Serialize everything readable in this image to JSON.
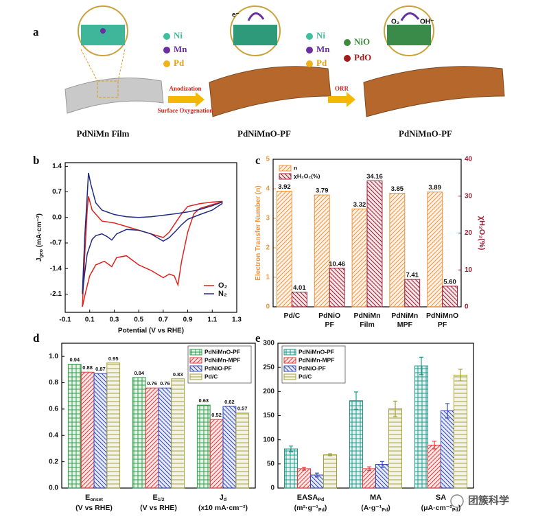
{
  "panel_labels": [
    "a",
    "b",
    "c",
    "d",
    "e"
  ],
  "schematic": {
    "legend1": [
      "Ni",
      "Mn",
      "Pd"
    ],
    "legend2": [
      "Ni",
      "Mn",
      "Pd"
    ],
    "legend3": [
      "NiO",
      "PdO"
    ],
    "step1": [
      "Anodization",
      "Surface Oxygenation"
    ],
    "step2": "ORR",
    "captions": [
      "PdNiMn Film",
      "PdNiMnO-PF",
      "PdNiMnO-PF"
    ],
    "electron": "e⁻",
    "oxygen": "O₂",
    "hydroxide": "OH⁻"
  },
  "chart_data": [
    {
      "type": "line",
      "xlabel": "Potential (V vs RHE)",
      "ylabel": {
        "main": "J",
        "sub": "geo",
        "rest": " (mA·cm⁻²)"
      },
      "xlim": [
        -0.1,
        1.3
      ],
      "xticks": [
        -0.1,
        0.1,
        0.3,
        0.5,
        0.7,
        0.9,
        1.1,
        1.3
      ],
      "ylim": [
        -2.6,
        1.5
      ],
      "yticks": [
        1.4,
        0.7,
        {
          "value": 0,
          "label": "0.0"
        },
        -0.7,
        -1.4,
        -2.1
      ],
      "legend": "lower right",
      "series": [
        {
          "name": "O₂",
          "color": "#e0201c",
          "x": [
            0.04,
            0.06,
            0.08,
            0.09,
            0.12,
            0.2,
            0.3,
            0.4,
            0.5,
            0.6,
            0.7,
            0.75,
            0.8,
            0.85,
            0.9,
            1.0,
            1.1,
            1.18,
            1.18,
            1.1,
            1.0,
            0.95,
            0.9,
            0.85,
            0.82,
            0.79,
            0.75,
            0.7,
            0.6,
            0.5,
            0.4,
            0.32,
            0.28,
            0.22,
            0.15,
            0.1,
            0.07,
            0.04
          ],
          "values": [
            -2.45,
            -1.0,
            0.2,
            0.58,
            0.2,
            -0.1,
            -0.15,
            -0.25,
            -0.35,
            -0.45,
            -0.55,
            -0.4,
            -0.15,
            0.1,
            0.3,
            0.38,
            0.42,
            0.44,
            0.42,
            0.35,
            0.25,
            0.1,
            -0.4,
            -1.2,
            -1.85,
            -1.6,
            -1.55,
            -1.65,
            -1.45,
            -1.3,
            -1.05,
            -1.1,
            -1.35,
            -1.2,
            -1.3,
            -1.6,
            -2.0,
            -2.45
          ]
        },
        {
          "name": "N₂",
          "color": "#1f2a80",
          "x": [
            0.04,
            0.06,
            0.08,
            0.09,
            0.11,
            0.15,
            0.2,
            0.3,
            0.4,
            0.5,
            0.6,
            0.7,
            0.8,
            0.9,
            1.0,
            1.1,
            1.18,
            1.18,
            1.1,
            1.0,
            0.9,
            0.85,
            0.8,
            0.75,
            0.7,
            0.65,
            0.6,
            0.5,
            0.4,
            0.32,
            0.28,
            0.24,
            0.2,
            0.15,
            0.12,
            0.08,
            0.06,
            0.04
          ],
          "values": [
            -2.1,
            -0.5,
            0.6,
            1.22,
            0.9,
            0.4,
            0.2,
            0.08,
            0.02,
            0.0,
            0.02,
            0.06,
            0.1,
            0.15,
            0.22,
            0.32,
            0.42,
            0.38,
            0.2,
            0.08,
            -0.05,
            -0.2,
            -0.38,
            -0.55,
            -0.65,
            -0.55,
            -0.45,
            -0.35,
            -0.33,
            -0.45,
            -0.62,
            -0.52,
            -0.45,
            -0.5,
            -0.6,
            -1.0,
            -1.5,
            -2.1
          ]
        }
      ]
    },
    {
      "type": "bar",
      "categories": [
        [
          "Pd/C"
        ],
        [
          "PdNiO",
          "PF"
        ],
        [
          "PdNiMn",
          "Film"
        ],
        [
          "PdNiMn",
          "MPF"
        ],
        [
          "PdNiMnO",
          "PF"
        ]
      ],
      "ylabel": "Electron Transfer Number (n)",
      "y2label": "χH₂O₂(%)",
      "ylim": [
        0,
        5
      ],
      "yticks": [
        0,
        1,
        2,
        3,
        4,
        5
      ],
      "y2lim": [
        0,
        40
      ],
      "y2ticks": [
        0,
        10,
        20,
        30,
        40
      ],
      "legend": "upper left",
      "data_labels": true,
      "series": [
        {
          "name": "n",
          "color": "#f0953f",
          "values": [
            3.92,
            3.79,
            3.32,
            3.85,
            3.89
          ]
        },
        {
          "name": "χH₂O₂(%)",
          "color": "#9c1f35",
          "axis": "y2",
          "values": [
            4.01,
            10.46,
            34.16,
            7.41,
            5.6
          ],
          "value_labels": [
            "4.01",
            "10.46",
            "34.16",
            "7.41",
            "5.60"
          ]
        }
      ]
    },
    {
      "type": "bar",
      "categories": [
        {
          "main": "E",
          "sub": "onset",
          "line2": "(V vs RHE)"
        },
        {
          "main": "E",
          "sub": "1/2",
          "line2": "(V vs RHE)"
        },
        {
          "main": "J",
          "sub": "d",
          "line2": "(x10 mA·cm⁻²)"
        }
      ],
      "ylim": [
        0,
        1.1
      ],
      "yticks": [
        {
          "value": 0,
          "label": "0.0"
        },
        0.2,
        0.4,
        0.6,
        0.8,
        {
          "value": 1,
          "label": "1.0"
        }
      ],
      "legend": "upper right",
      "data_labels": true,
      "series": [
        {
          "name": "PdNiMnO-PF",
          "color": "#2e9e4a",
          "values": [
            0.94,
            0.84,
            0.63
          ]
        },
        {
          "name": "PdNiMn-MPF",
          "color": "#e23a3a",
          "values": [
            0.88,
            0.76,
            0.52
          ]
        },
        {
          "name": "PdNiO-PF",
          "color": "#3348b8",
          "values": [
            0.87,
            0.76,
            0.62
          ]
        },
        {
          "name": "Pd/C",
          "color": "#a3a23a",
          "values": [
            0.95,
            0.83,
            0.57
          ]
        }
      ]
    },
    {
      "type": "bar",
      "categories": [
        {
          "main": "EASA",
          "sub": "Pd",
          "line2": {
            "main": "(m²·g⁻¹",
            "sub": "Pd",
            "rest": ")"
          }
        },
        {
          "main": "MA",
          "line2": {
            "main": "(A·g⁻¹",
            "sub": "Pd",
            "rest": ")"
          }
        },
        {
          "main": "SA",
          "line2": {
            "main": "(μA·cm⁻²",
            "sub": "Pd",
            "rest": ")"
          }
        }
      ],
      "ylim": [
        0,
        300
      ],
      "yticks": [
        0,
        50,
        100,
        150,
        200,
        250,
        300
      ],
      "legend": "upper left",
      "series": [
        {
          "name": "PdNiMnO-PF",
          "color": "#1f9a8a",
          "values": [
            81,
            181,
            253
          ],
          "errors": [
            6,
            18,
            18
          ]
        },
        {
          "name": "PdNiMn-MPF",
          "color": "#e23a3a",
          "values": [
            40,
            40,
            89
          ],
          "errors": [
            3,
            4,
            8
          ]
        },
        {
          "name": "PdNiO-PF",
          "color": "#3348b8",
          "values": [
            27,
            49,
            160
          ],
          "errors": [
            4,
            6,
            15
          ]
        },
        {
          "name": "Pd/C",
          "color": "#a3a23a",
          "values": [
            69,
            164,
            234
          ],
          "errors": [
            2,
            16,
            12
          ]
        }
      ]
    }
  ],
  "watermark": "团簇科学"
}
